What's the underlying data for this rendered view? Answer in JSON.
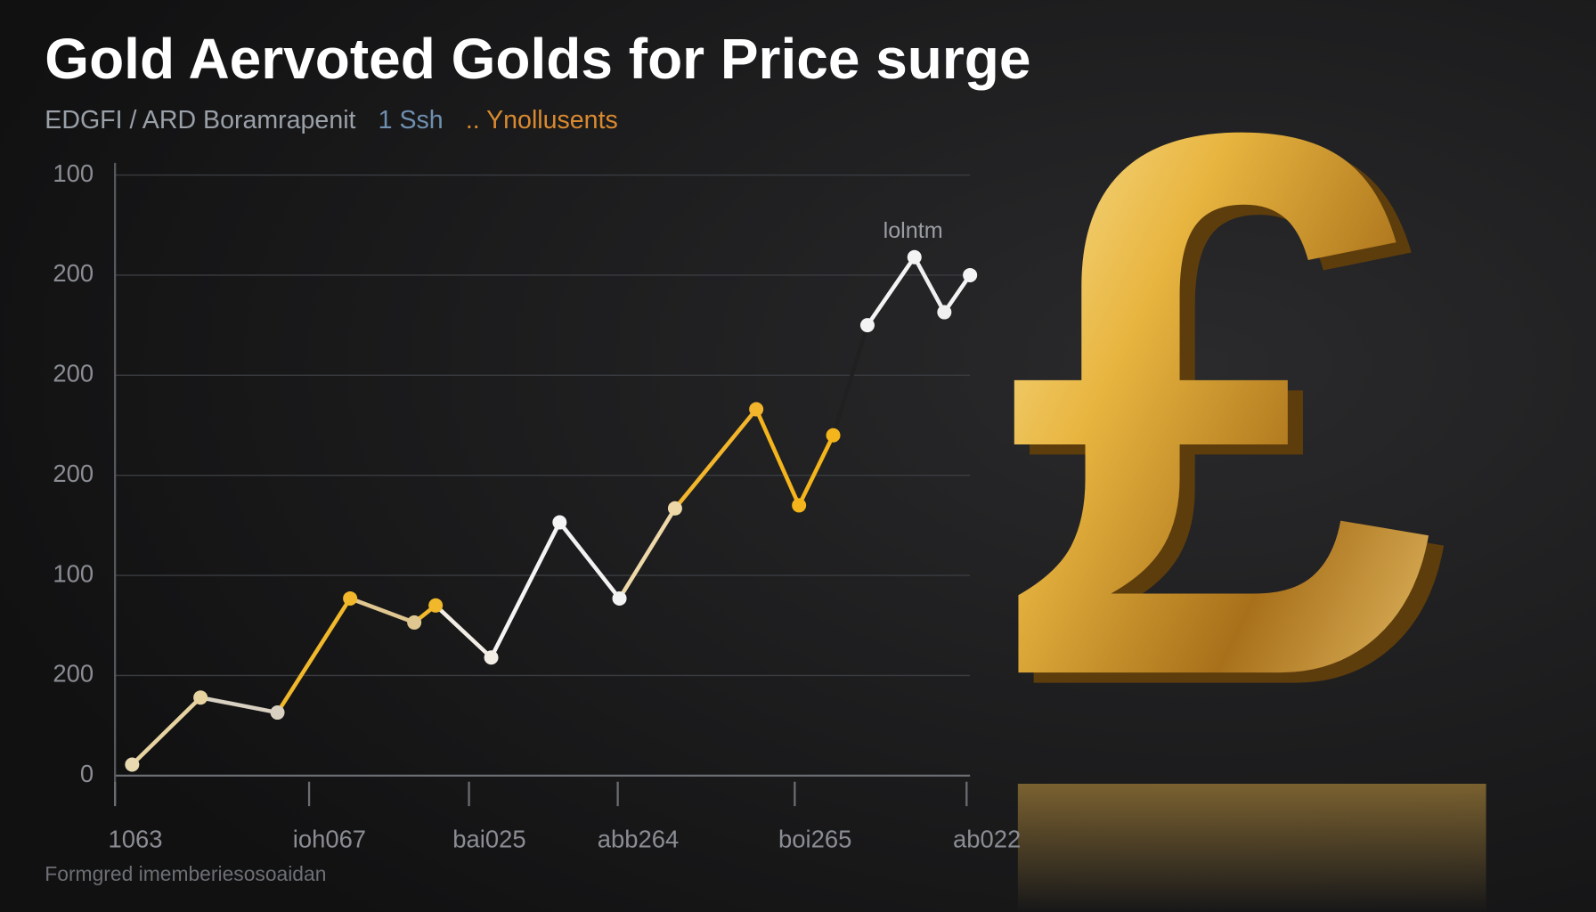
{
  "chart_data": {
    "type": "line",
    "title": "Gold Aervoted Golds for Price surge",
    "subtitle": [
      {
        "text": "EDGFI / ARD Boramrapenit",
        "color": "#9aa0a8"
      },
      {
        "text": "1 Ssh",
        "color": "#6f8fb0"
      },
      {
        "text": ".. Ynollusents",
        "color": "#d9892f"
      }
    ],
    "annotation": "lolntm",
    "footer": "Formgred imemberiesosoaidan",
    "x": [
      2,
      10,
      19,
      27.5,
      35,
      37.5,
      44,
      52,
      59,
      65.5,
      75,
      80,
      84,
      88,
      93.5,
      97,
      100
    ],
    "series": [
      {
        "values": [
          11,
          78,
          63,
          177,
          153,
          170,
          118,
          253,
          177,
          267,
          366,
          270,
          340,
          450,
          518,
          463,
          500
        ],
        "colors": [
          "#e8d9b0",
          "#e6d3a0",
          "#d8d0c0",
          "#f0b82a",
          "#e0c690",
          "#f0b82a",
          "#f2eee6",
          "#f4f4f4",
          "#f2f2f2",
          "#eed8a8",
          "#f2b52c",
          "#f4b51c",
          "#f4b51c",
          "#202020",
          "#f4f4f4",
          "#f0f0f0",
          "#f4f4f4"
        ]
      }
    ],
    "xlim": [
      0,
      100
    ],
    "xticks": [
      {
        "value": 0,
        "label": "1063"
      },
      {
        "value": 22.7,
        "label": "ioh067"
      },
      {
        "value": 41.4,
        "label": "bai025"
      },
      {
        "value": 58.8,
        "label": "abb264"
      },
      {
        "value": 79.5,
        "label": "boi265"
      },
      {
        "value": 99.6,
        "label": "ab022"
      }
    ],
    "ylim": [
      0,
      600
    ],
    "yticks": [
      0,
      {
        "value": 100,
        "label": "200"
      },
      {
        "value": 200,
        "label": "100"
      },
      {
        "value": 300,
        "label": "200"
      },
      {
        "value": 400,
        "label": "200"
      },
      {
        "value": 500,
        "label": "200"
      },
      {
        "value": 600,
        "label": "100"
      }
    ],
    "grid": true
  }
}
